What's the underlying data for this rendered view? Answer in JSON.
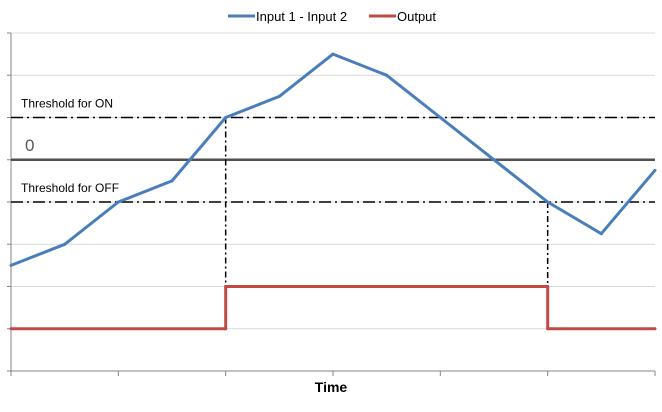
{
  "chart_data": {
    "type": "line",
    "title": "",
    "xlabel": "Time",
    "ylabel": "",
    "x": [
      0,
      1,
      2,
      3,
      4,
      5,
      6,
      7,
      8,
      9,
      10,
      11,
      12
    ],
    "xlim": [
      0,
      12
    ],
    "ylim": [
      -5,
      3
    ],
    "legend": {
      "position": "top",
      "entries": [
        "Input 1 - Input 2",
        "Output"
      ]
    },
    "series": [
      {
        "name": "Input 1 - Input 2",
        "color": "#4a7ebb",
        "x": [
          0,
          1,
          2,
          3,
          4,
          5,
          6,
          7,
          8,
          9,
          10,
          11,
          12
        ],
        "values": [
          -2.5,
          -2.0,
          -1.0,
          -0.5,
          1.0,
          1.5,
          2.5,
          2.0,
          1.0,
          0.0,
          -1.0,
          -1.75,
          -0.25
        ]
      },
      {
        "name": "Output",
        "color": "#be4b48",
        "x": [
          0,
          4,
          4,
          10,
          10,
          12
        ],
        "values": [
          -4,
          -4,
          -3,
          -3,
          -4,
          -4
        ],
        "step": true
      }
    ],
    "reference_lines": [
      {
        "label": "0",
        "value": 0,
        "style": "solid",
        "color": "#505050"
      },
      {
        "label": "Threshold for ON",
        "value": 1,
        "style": "dash-dot",
        "color": "#000000"
      },
      {
        "label": "Threshold for OFF",
        "value": -1,
        "style": "dash-dot",
        "color": "#000000"
      }
    ],
    "crossing_markers": [
      {
        "x": 4,
        "from": 1,
        "to": -4
      },
      {
        "x": 10,
        "from": -1,
        "to": -4
      }
    ],
    "grid": "horizontal",
    "gridline_color": "#d9d9d9",
    "axis_color": "#868686"
  }
}
